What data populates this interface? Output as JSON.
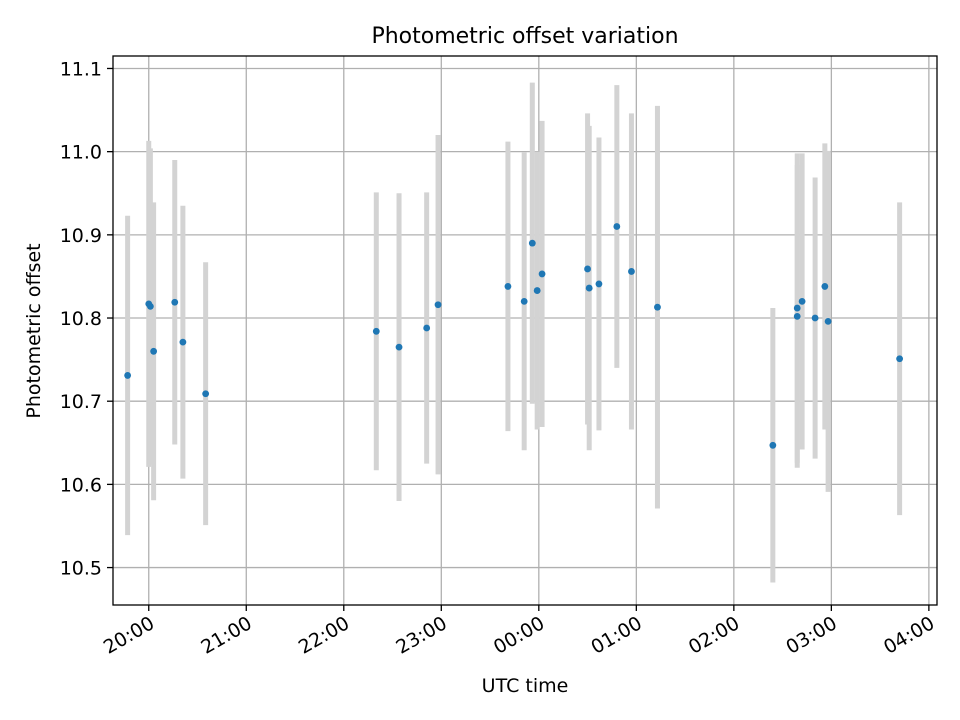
{
  "chart_data": {
    "type": "scatter",
    "title": "Photometric offset variation",
    "xlabel": "UTC time",
    "ylabel": "Photometric offset",
    "grid": true,
    "legend": "none",
    "x_tick_labels": [
      "20:00",
      "21:00",
      "22:00",
      "23:00",
      "00:00",
      "01:00",
      "02:00",
      "03:00",
      "04:00"
    ],
    "y_ticks": [
      10.5,
      10.6,
      10.7,
      10.8,
      10.9,
      11.0,
      11.1
    ],
    "y_tick_labels": [
      "10.5",
      "10.6",
      "10.7",
      "10.8",
      "10.9",
      "11.0",
      "11.1"
    ],
    "xlim": [
      "19:38",
      "04:05"
    ],
    "ylim": [
      10.455,
      11.115
    ],
    "colors": {
      "point": "#1f77b4",
      "errorbar": "#d3d3d3",
      "grid": "#b0b0b0"
    },
    "points": [
      {
        "x": "19:47",
        "y": 10.731,
        "err": 0.192
      },
      {
        "x": "20:00",
        "y": 10.817,
        "err": 0.196
      },
      {
        "x": "20:01",
        "y": 10.814,
        "err": 0.19
      },
      {
        "x": "20:03",
        "y": 10.76,
        "err": 0.179
      },
      {
        "x": "20:16",
        "y": 10.819,
        "err": 0.171
      },
      {
        "x": "20:21",
        "y": 10.771,
        "err": 0.164
      },
      {
        "x": "20:35",
        "y": 10.709,
        "err": 0.158
      },
      {
        "x": "22:20",
        "y": 10.784,
        "err": 0.167
      },
      {
        "x": "22:34",
        "y": 10.765,
        "err": 0.185
      },
      {
        "x": "22:51",
        "y": 10.788,
        "err": 0.163
      },
      {
        "x": "22:58",
        "y": 10.816,
        "err": 0.204
      },
      {
        "x": "23:41",
        "y": 10.838,
        "err": 0.174
      },
      {
        "x": "23:51",
        "y": 10.82,
        "err": 0.179
      },
      {
        "x": "23:56",
        "y": 10.89,
        "err": 0.193
      },
      {
        "x": "23:59",
        "y": 10.833,
        "err": 0.167
      },
      {
        "x": "00:02",
        "y": 10.853,
        "err": 0.184
      },
      {
        "x": "00:30",
        "y": 10.859,
        "err": 0.187
      },
      {
        "x": "00:31",
        "y": 10.836,
        "err": 0.195
      },
      {
        "x": "00:37",
        "y": 10.841,
        "err": 0.176
      },
      {
        "x": "00:48",
        "y": 10.91,
        "err": 0.17
      },
      {
        "x": "00:57",
        "y": 10.856,
        "err": 0.19
      },
      {
        "x": "01:13",
        "y": 10.813,
        "err": 0.242
      },
      {
        "x": "02:24",
        "y": 10.647,
        "err": 0.165
      },
      {
        "x": "02:39",
        "y": 10.812,
        "err": 0.186
      },
      {
        "x": "02:39",
        "y": 10.802,
        "err": 0.182
      },
      {
        "x": "02:42",
        "y": 10.82,
        "err": 0.178
      },
      {
        "x": "02:50",
        "y": 10.8,
        "err": 0.169
      },
      {
        "x": "02:56",
        "y": 10.838,
        "err": 0.172
      },
      {
        "x": "02:58",
        "y": 10.796,
        "err": 0.205
      },
      {
        "x": "03:42",
        "y": 10.751,
        "err": 0.188
      }
    ]
  }
}
